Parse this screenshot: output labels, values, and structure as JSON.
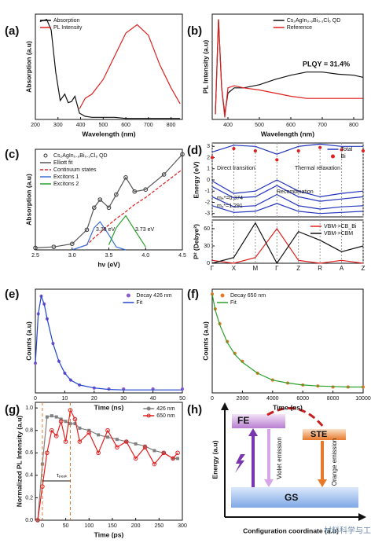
{
  "chart_data": [
    {
      "type": "line",
      "label": "(a)",
      "xlabel": "Wavelength (nm)",
      "ylabel": "Absorption (a.u)",
      "xlim": [
        200,
        850
      ],
      "xticks": [
        200,
        300,
        400,
        500,
        600,
        700,
        800
      ],
      "ylim": [
        0,
        1
      ],
      "legend": "upper left",
      "x": [
        220,
        250,
        270,
        290,
        310,
        330,
        345,
        360,
        375,
        395,
        420,
        450,
        500,
        550,
        600,
        650,
        700,
        750,
        800,
        840
      ],
      "series": [
        {
          "name": "Absorption",
          "color": "#111111",
          "values": [
            0.93,
            0.95,
            0.85,
            0.45,
            0.18,
            0.24,
            0.16,
            0.17,
            0.22,
            0.06,
            0.03,
            0.02,
            0.02,
            0.02,
            0.01,
            0.01,
            0.01,
            0.01,
            0.01,
            0.01
          ]
        },
        {
          "name": "PL Intensity",
          "color": "#e02020",
          "values": [
            null,
            null,
            null,
            null,
            null,
            null,
            null,
            null,
            null,
            0.1,
            0.2,
            0.24,
            0.38,
            0.6,
            0.82,
            0.9,
            0.8,
            0.52,
            0.3,
            0.15
          ]
        }
      ]
    },
    {
      "type": "line",
      "label": "(b)",
      "xlabel": "Wavelength (nm)",
      "ylabel": "PL Intensity (a.u)",
      "xlim": [
        350,
        830
      ],
      "xticks": [
        400,
        500,
        600,
        700,
        800
      ],
      "ylim": [
        0,
        1
      ],
      "legend": "upper right",
      "annotations": [
        "PLQY = 31.4%"
      ],
      "x": [
        360,
        370,
        380,
        390,
        400,
        420,
        450,
        500,
        550,
        600,
        650,
        700,
        750,
        800,
        830
      ],
      "series": [
        {
          "name": "Cs₂AgIn₀.₉Bi₀.₁Cl₆ QD",
          "color": "#111111",
          "values": [
            0.05,
            0.95,
            0.3,
            0.05,
            0.25,
            0.3,
            0.3,
            0.33,
            0.38,
            0.42,
            0.45,
            0.45,
            0.43,
            0.42,
            0.4
          ]
        },
        {
          "name": "Reference",
          "color": "#e02020",
          "values": [
            0.05,
            0.95,
            0.3,
            0.02,
            0.3,
            0.32,
            0.3,
            0.28,
            0.25,
            0.22,
            0.2,
            0.2,
            0.2,
            0.2,
            0.2
          ]
        }
      ]
    },
    {
      "type": "line",
      "label": "(c)",
      "xlabel": "hν (eV)",
      "ylabel": "Absorption (a.u)",
      "xlim": [
        2.5,
        4.5
      ],
      "xticks": [
        2.5,
        {
          "value": 3,
          "label": "3.0"
        },
        3.5,
        {
          "value": 4,
          "label": "4.0"
        },
        4.5
      ],
      "ylim": [
        0,
        1
      ],
      "legend": "upper left",
      "annotations": [
        "3.38 eV",
        "3.73 eV"
      ],
      "x": [
        2.5,
        2.75,
        3.0,
        3.2,
        3.3,
        3.38,
        3.5,
        3.6,
        3.73,
        3.85,
        4.0,
        4.25,
        4.5
      ],
      "series": [
        {
          "name": "Cs₂AgIn₀.₉Bi₀.₁Cl₆ QD",
          "color": "#333333",
          "line": false,
          "marker": "ring",
          "values": [
            0.02,
            0.03,
            0.06,
            0.2,
            0.42,
            0.5,
            0.42,
            0.55,
            0.72,
            0.58,
            0.6,
            0.75,
            0.95
          ]
        },
        {
          "name": "Elliott fit",
          "color": "#555555",
          "values": [
            0.02,
            0.03,
            0.06,
            0.2,
            0.42,
            0.5,
            0.42,
            0.55,
            0.72,
            0.58,
            0.6,
            0.75,
            0.95
          ]
        },
        {
          "name": "Continuum states",
          "color": "#e02020",
          "dash": true,
          "values": [
            null,
            null,
            0.0,
            0.05,
            0.12,
            0.17,
            0.25,
            0.31,
            0.38,
            0.45,
            0.52,
            0.66,
            0.8
          ]
        },
        {
          "name": "Excitons 1",
          "color": "#3a6fd8",
          "values": [
            null,
            null,
            0.0,
            0.05,
            0.22,
            0.28,
            0.15,
            0.03,
            0.0,
            null,
            null,
            null,
            null
          ]
        },
        {
          "name": "Excitons 2",
          "color": "#2aa02a",
          "values": [
            null,
            null,
            null,
            null,
            null,
            null,
            0.05,
            0.22,
            0.34,
            0.2,
            0.03,
            null,
            null
          ]
        }
      ]
    },
    {
      "type": "line",
      "label": "(d)",
      "ylabel": "Energy (eV)",
      "ylim": [
        -3.3,
        3.3
      ],
      "yticks": [
        -3,
        -2,
        -1,
        0,
        1,
        2,
        3
      ],
      "legend": "upper right",
      "annotations": [
        "Direct transition",
        "Thermal relaxation",
        "Recombination",
        "mₕ*=0.374",
        "mₑ*=1.291"
      ],
      "series": [
        {
          "color": "#2233bb",
          "values": [
            2.5,
            3.1,
            3.0,
            2.3,
            3.0,
            3.2,
            3.0,
            3.0
          ]
        },
        {
          "color": "#2233bb",
          "values": [
            -0.6,
            -1.6,
            -1.5,
            -0.5,
            -1.5,
            -1.9,
            -1.7,
            -1.5
          ]
        },
        {
          "color": "#2233bb",
          "values": [
            -1.5,
            -2.4,
            -2.3,
            -1.3,
            -2.3,
            -2.6,
            -2.4,
            -2.3
          ]
        },
        {
          "color": "#2233bb",
          "values": [
            -2.3,
            -2.9,
            -2.8,
            -2.1,
            -2.8,
            -3.0,
            -2.9,
            -2.8
          ]
        },
        {
          "name": "Total",
          "color": "#2233bb",
          "values": [
            -0.1,
            -1.2,
            -1.0,
            0,
            -1.0,
            -1.5,
            -1.2,
            -1.0
          ]
        },
        {
          "name": "Bi",
          "color": "#e02020",
          "line": false,
          "marker": "circle",
          "values": [
            2.0,
            2.8,
            2.6,
            1.8,
            2.6,
            2.9,
            2.7,
            2.6
          ]
        }
      ]
    },
    {
      "type": "line",
      "ylabel": "P² (Debye²)",
      "ylim": [
        0,
        75
      ],
      "yticks": [
        0,
        30,
        60
      ],
      "legend": "upper right",
      "categories": [
        "Γ",
        "X",
        "M",
        "Γ",
        "Z",
        "R",
        "A",
        "Z"
      ],
      "series": [
        {
          "name": "VBM->CB_Bi",
          "color": "#e02020",
          "values": [
            5,
            0,
            10,
            60,
            5,
            0,
            5,
            0
          ]
        },
        {
          "name": "VBM->CBM",
          "color": "#111111",
          "values": [
            0,
            10,
            70,
            0,
            55,
            40,
            20,
            30
          ]
        }
      ]
    },
    {
      "type": "scatter",
      "label": "(e)",
      "xlabel": "Time (ns)",
      "ylabel": "Counts (a.u)",
      "xlim": [
        0,
        50
      ],
      "xticks": [
        0,
        10,
        20,
        30,
        40,
        50
      ],
      "ylim": [
        0,
        1.05
      ],
      "legend": "upper right",
      "x": [
        0,
        1,
        2,
        3,
        4,
        6,
        8,
        10,
        12,
        15,
        20,
        25,
        30,
        40,
        50
      ],
      "series": [
        {
          "name": "Decay 426 nm",
          "color": "#8a5ad0",
          "line": false,
          "marker": "circle",
          "values": [
            0.3,
            0.8,
            0.98,
            0.9,
            0.75,
            0.5,
            0.32,
            0.2,
            0.13,
            0.08,
            0.05,
            0.04,
            0.04,
            0.04,
            0.04
          ]
        },
        {
          "name": "Fit",
          "color": "#2244cc",
          "values": [
            0.3,
            0.8,
            0.98,
            0.9,
            0.75,
            0.5,
            0.32,
            0.2,
            0.13,
            0.08,
            0.05,
            0.035,
            0.03,
            0.03,
            0.03
          ]
        }
      ]
    },
    {
      "type": "scatter",
      "label": "(f)",
      "xlabel": "Time (ns)",
      "ylabel": "Counts (a.u)",
      "xlim": [
        0,
        10000
      ],
      "xticks": [
        0,
        2000,
        4000,
        6000,
        8000,
        10000
      ],
      "ylim": [
        0,
        1.05
      ],
      "legend": "upper left",
      "x": [
        0,
        200,
        500,
        1000,
        1500,
        2000,
        3000,
        4000,
        5000,
        6000,
        7000,
        8000,
        9000,
        10000
      ],
      "series": [
        {
          "name": "Decay 650 nm",
          "color": "#e8782a",
          "line": false,
          "marker": "circle",
          "values": [
            1.0,
            0.85,
            0.7,
            0.52,
            0.4,
            0.32,
            0.2,
            0.13,
            0.1,
            0.08,
            0.07,
            0.06,
            0.06,
            0.06
          ]
        },
        {
          "name": "Fit",
          "color": "#2aa02a",
          "values": [
            1.0,
            0.84,
            0.69,
            0.51,
            0.39,
            0.31,
            0.2,
            0.13,
            0.1,
            0.08,
            0.07,
            0.065,
            0.06,
            0.06
          ]
        }
      ]
    },
    {
      "type": "line",
      "label": "(g)",
      "xlabel": "Time (ps)",
      "ylabel": "Normalized PL Intensity (a.u)",
      "xlim": [
        -15,
        300
      ],
      "xticks": [
        0,
        50,
        100,
        150,
        200,
        250,
        300
      ],
      "ylim": [
        0,
        1.05
      ],
      "yticks": [
        {
          "value": 0,
          "label": "0.0"
        },
        0.2,
        0.4,
        0.6,
        0.8,
        {
          "value": 1,
          "label": "1.0"
        }
      ],
      "legend": "upper right",
      "annotations": [
        "τₚₑₐₖ"
      ],
      "x": [
        -10,
        0,
        10,
        20,
        30,
        40,
        50,
        60,
        70,
        80,
        100,
        120,
        140,
        160,
        180,
        200,
        220,
        240,
        260,
        280,
        290
      ],
      "series": [
        {
          "name": "426 nm",
          "color": "#808080",
          "marker": "square",
          "values": [
            0,
            0.5,
            0.92,
            0.93,
            0.92,
            0.9,
            0.88,
            0.86,
            0.86,
            0.82,
            0.8,
            0.76,
            0.74,
            0.72,
            0.7,
            0.68,
            0.66,
            0.62,
            0.6,
            0.55,
            0.55
          ]
        },
        {
          "name": "650 nm",
          "color": "#e02020",
          "marker": "ring",
          "values": [
            0,
            0.3,
            0.6,
            0.8,
            0.75,
            0.88,
            0.7,
            0.98,
            0.9,
            0.7,
            0.78,
            0.6,
            0.8,
            0.65,
            0.7,
            0.55,
            0.65,
            0.5,
            0.6,
            0.55,
            0.6
          ]
        }
      ]
    }
  ],
  "diagram": {
    "label": "(h)",
    "ylabel": "Energy (a.u)",
    "xlabel": "Configuration coordinate (a.u)",
    "states": [
      "FE",
      "STE",
      "GS"
    ],
    "transitions": [
      "Violet emission",
      "Orange emission"
    ]
  },
  "watermark": "材料科学与工程"
}
